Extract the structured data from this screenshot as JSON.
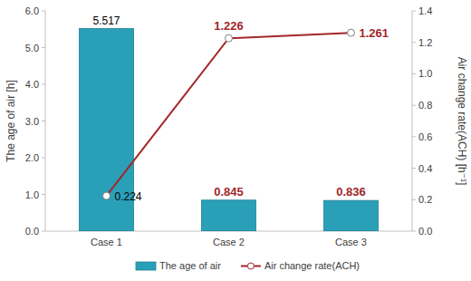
{
  "chart_data": {
    "type": "bar",
    "categories": [
      "Case 1",
      "Case 2",
      "Case 3"
    ],
    "series": [
      {
        "name": "The age of air",
        "type": "bar",
        "color": "#2a9fb8",
        "values": [
          5.517,
          0.845,
          0.836
        ]
      },
      {
        "name": "Air change rate(ACH)",
        "type": "line",
        "axis": "y2",
        "color": "#a3262a",
        "marker": "circle",
        "values": [
          0.224,
          1.226,
          1.261
        ]
      }
    ],
    "y_label": "The age of air [h]",
    "y2_label": "Air change rate(ACH) [h⁻¹]",
    "ylim": [
      0,
      6
    ],
    "yticks": [
      {
        "value": 0,
        "label": "0.0"
      },
      {
        "value": 1,
        "label": "1.0"
      },
      {
        "value": 2,
        "label": "2.0"
      },
      {
        "value": 3,
        "label": "3.0"
      },
      {
        "value": 4,
        "label": "4.0"
      },
      {
        "value": 5,
        "label": "5.0"
      },
      {
        "value": 6,
        "label": "6.0"
      }
    ],
    "y2lim": [
      0,
      1.4
    ],
    "y2ticks": [
      {
        "value": 0,
        "label": "0.0"
      },
      0.2,
      0.4,
      0.6,
      0.8,
      {
        "value": 1,
        "label": "1.0"
      },
      1.2,
      1.4
    ],
    "grid": false,
    "legend": "bottom",
    "data_labels": true
  }
}
